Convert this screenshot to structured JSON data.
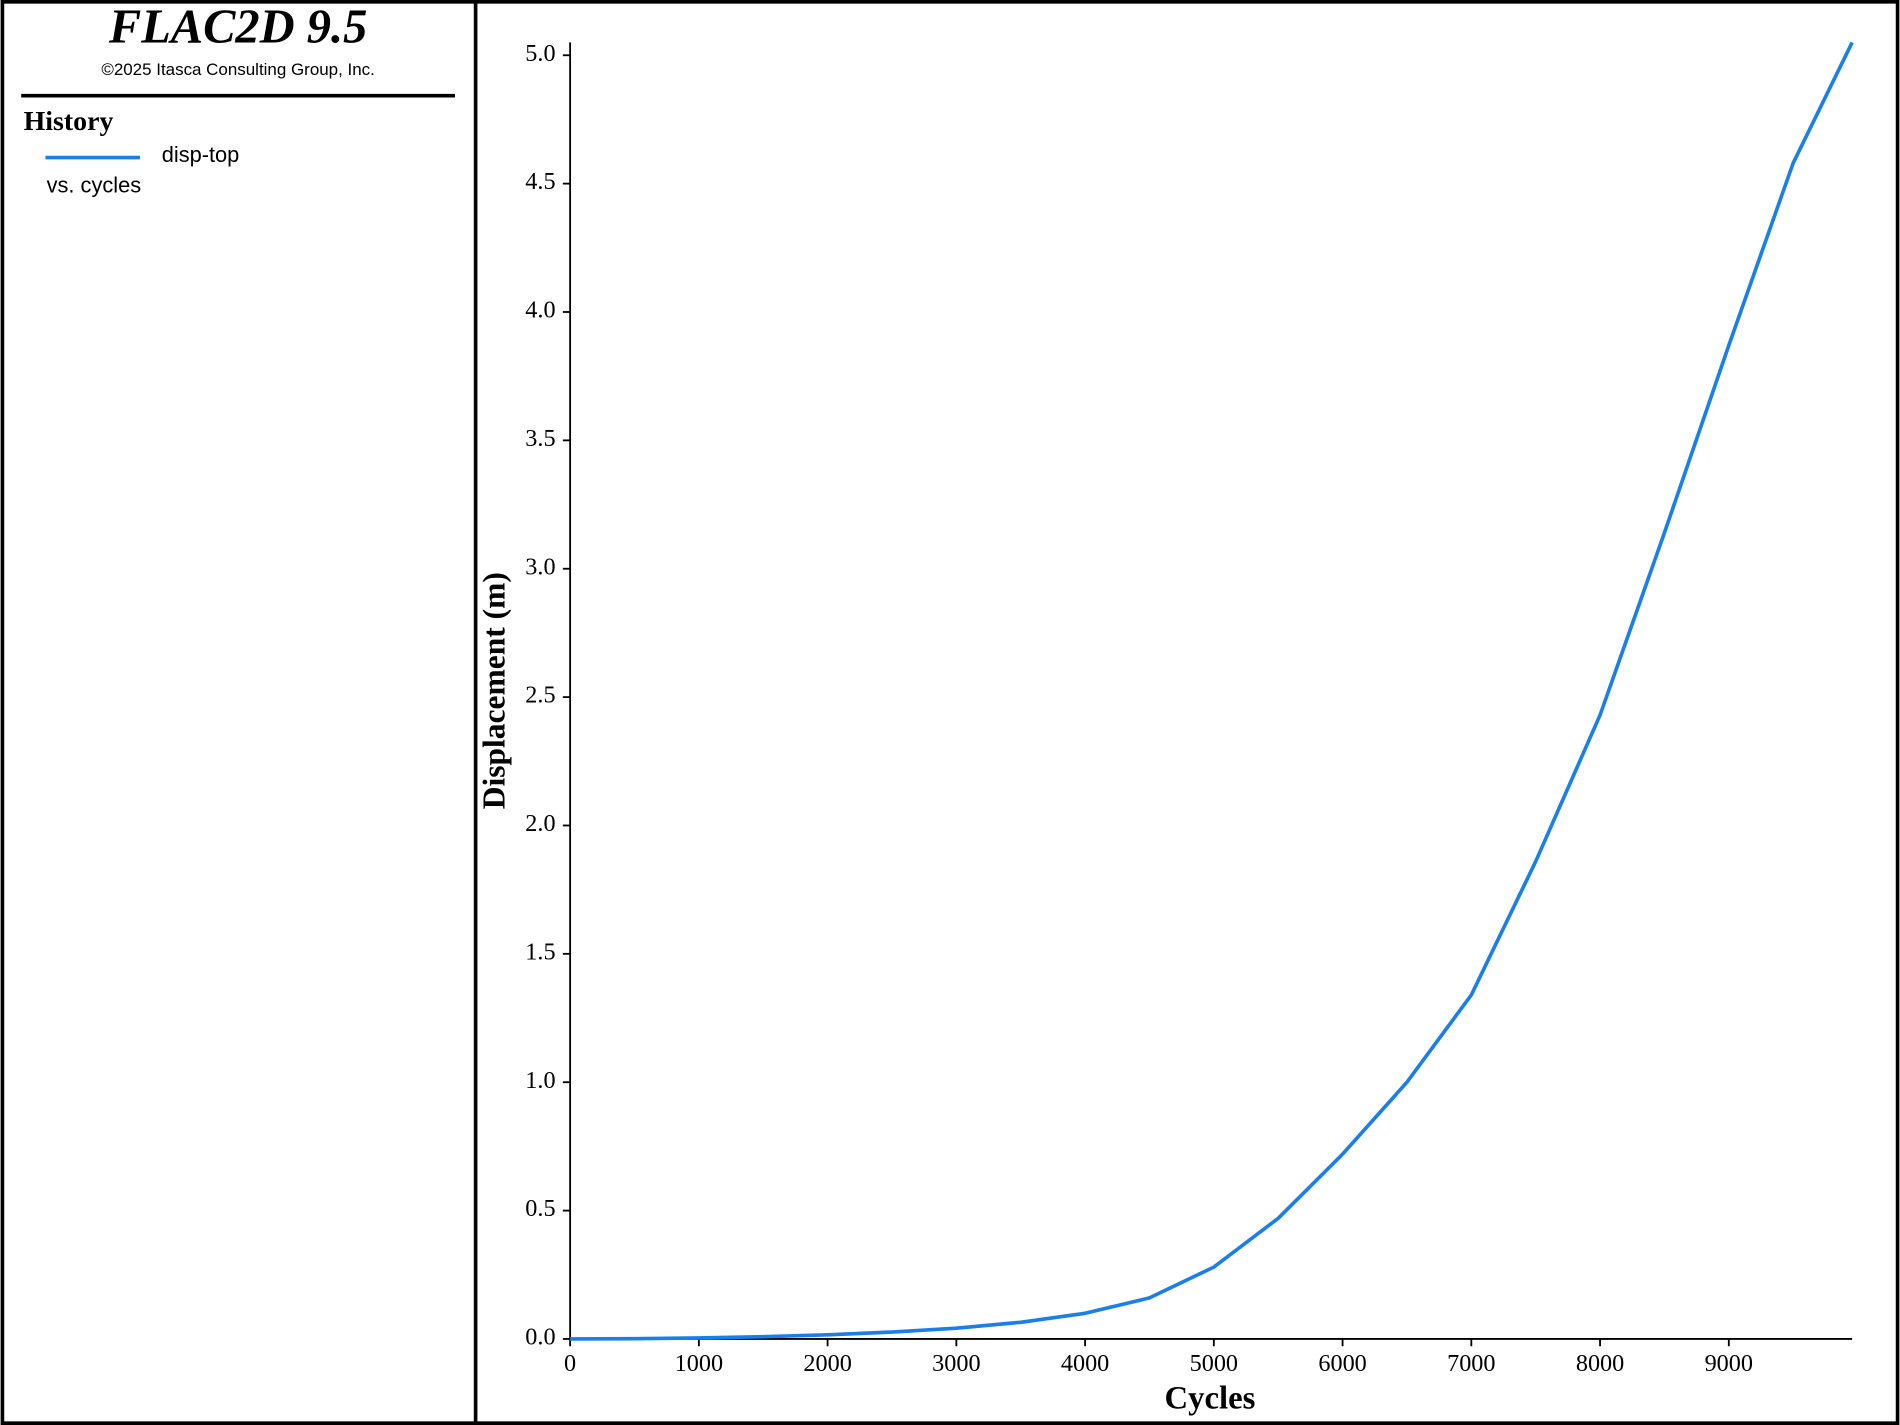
{
  "header": {
    "title": "FLAC2D 9.5",
    "copyright": "©2025 Itasca Consulting Group, Inc."
  },
  "chart_data": {
    "type": "line",
    "legend_title": "History",
    "legend_note": "vs. cycles",
    "x_label": "Cycles",
    "y_label": "Displacement (m)",
    "x": [
      0,
      500,
      1000,
      1500,
      2000,
      2500,
      3000,
      3500,
      4000,
      4500,
      5000,
      5500,
      6000,
      6500,
      7000,
      7500,
      8000,
      8500,
      9000,
      9500,
      9958
    ],
    "series": [
      {
        "name": "disp-top",
        "color": "#1a7fe8",
        "values": [
          0,
          0.001,
          0.004,
          0.009,
          0.016,
          0.027,
          0.042,
          0.065,
          0.1,
          0.16,
          0.28,
          0.47,
          0.72,
          1.0,
          1.34,
          1.86,
          2.43,
          3.14,
          3.87,
          4.58,
          5.05
        ]
      }
    ],
    "xlim": [
      0,
      9958
    ],
    "ylim": [
      0,
      5.05
    ],
    "xticks": [
      0,
      1000,
      2000,
      3000,
      4000,
      5000,
      6000,
      7000,
      8000,
      9000
    ],
    "yticks": [
      {
        "value": 0,
        "label": "0.0"
      },
      {
        "value": 0.5,
        "label": "0.5"
      },
      {
        "value": 1,
        "label": "1.0"
      },
      {
        "value": 1.5,
        "label": "1.5"
      },
      {
        "value": 2,
        "label": "2.0"
      },
      {
        "value": 2.5,
        "label": "2.5"
      },
      {
        "value": 3,
        "label": "3.0"
      },
      {
        "value": 3.5,
        "label": "3.5"
      },
      {
        "value": 4,
        "label": "4.0"
      },
      {
        "value": 4.5,
        "label": "4.5"
      },
      {
        "value": 5,
        "label": "5.0"
      }
    ]
  }
}
